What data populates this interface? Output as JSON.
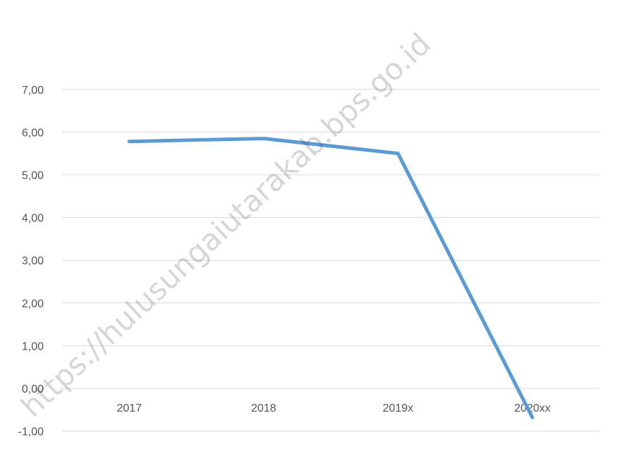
{
  "chart_data": {
    "type": "line",
    "categories": [
      "2017",
      "2018",
      "2019x",
      "2020xx"
    ],
    "series": [
      {
        "values": [
          5.78,
          5.85,
          5.5,
          -0.68
        ],
        "color": "#5b9bd5"
      }
    ],
    "y_ticks": [
      "-1,00",
      "0,00",
      "1,00",
      "2,00",
      "3,00",
      "4,00",
      "5,00",
      "6,00",
      "7,00"
    ],
    "ylim": [
      -1,
      7
    ],
    "grid": true,
    "legend": "none"
  },
  "watermark": "https://hulusungaiutarakab.bps.go.id"
}
